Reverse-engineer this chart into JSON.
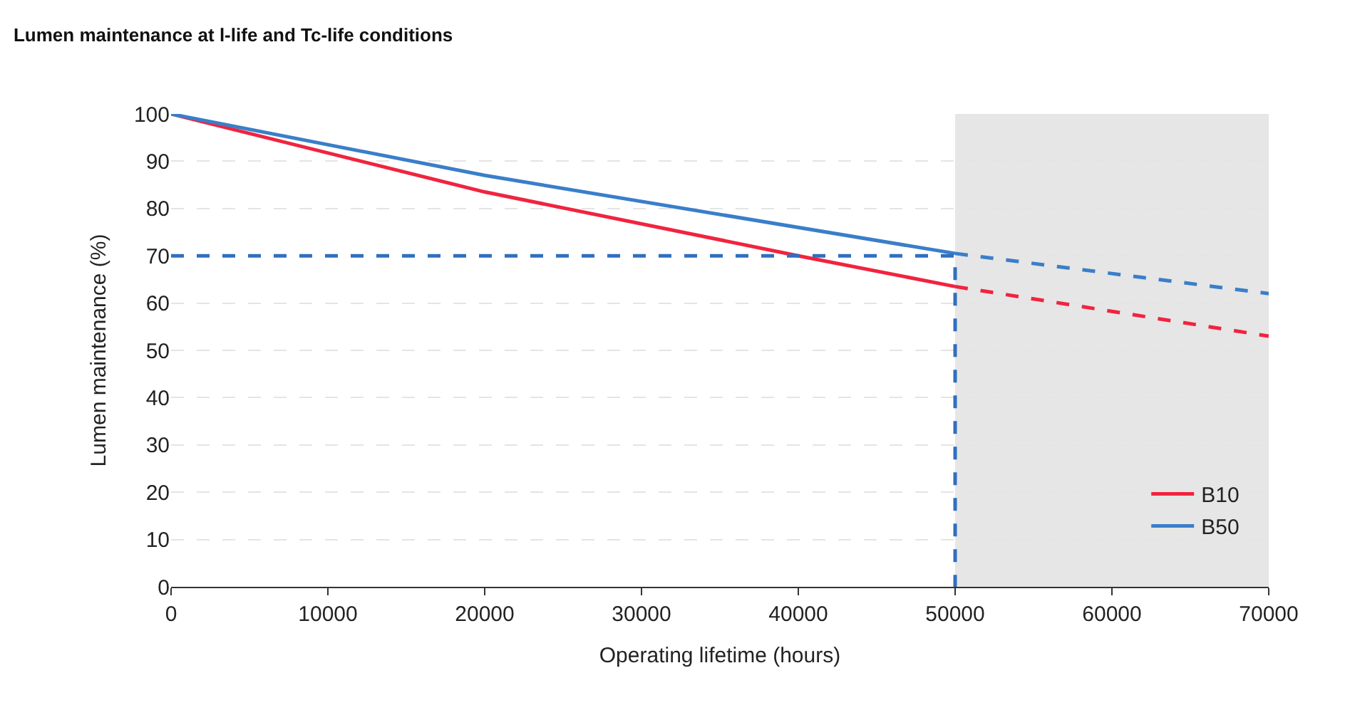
{
  "chart_data": {
    "type": "line",
    "title": "Lumen maintenance at l-life and Tc-life conditions",
    "xlabel": "Operating lifetime (hours)",
    "ylabel": "Lumen maintenance (%)",
    "series": [
      {
        "name": "B10",
        "color": "#f0243f",
        "x": [
          0,
          20000,
          40000,
          50000
        ],
        "values": [
          100,
          83.5,
          70,
          63.5
        ]
      },
      {
        "name": "B50",
        "color": "#3a7ec9",
        "x": [
          0,
          20000,
          50000
        ],
        "values": [
          100,
          87,
          70.5
        ]
      },
      {
        "color": "#f0243f",
        "x": [
          50000,
          70000
        ],
        "values": [
          63.5,
          53
        ],
        "line_style": "dashed"
      },
      {
        "color": "#3a7ec9",
        "x": [
          50000,
          70000
        ],
        "values": [
          70.5,
          62
        ],
        "line_style": "dashed"
      },
      {
        "color": "#2f6fbf",
        "x": [
          0,
          50000,
          50000
        ],
        "values": [
          70,
          70,
          0
        ],
        "line_style": "dashed"
      }
    ],
    "bands": [
      {
        "axis": "x",
        "from": 50000,
        "to": 70000,
        "color": "#e6e6e6"
      }
    ],
    "xlim": [
      0,
      70000
    ],
    "xticks": [
      0,
      10000,
      20000,
      30000,
      40000,
      50000,
      60000,
      70000
    ],
    "ylim": [
      0,
      100
    ],
    "yticks": [
      0,
      10,
      20,
      30,
      40,
      50,
      60,
      70,
      80,
      90,
      100
    ],
    "grid": "y",
    "legend": "bottom right",
    "marker": "none"
  }
}
